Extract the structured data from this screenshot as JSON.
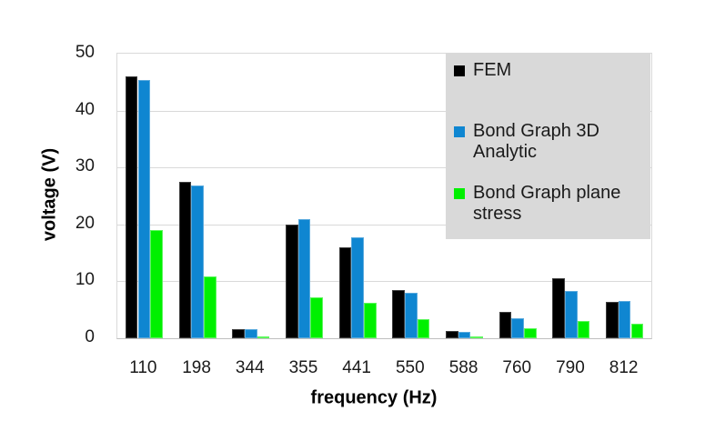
{
  "chart_data": {
    "type": "bar",
    "title": "",
    "xlabel": "frequency (Hz)",
    "ylabel": "voltage (V)",
    "categories": [
      "110",
      "198",
      "344",
      "355",
      "441",
      "550",
      "588",
      "760",
      "790",
      "812"
    ],
    "series": [
      {
        "name": "FEM",
        "color": "#000000",
        "border_color": "#3f3f3f",
        "values": [
          46,
          27.4,
          1.6,
          20,
          16,
          8.5,
          1.3,
          4.7,
          10.6,
          6.4
        ]
      },
      {
        "name": "Bond Graph 3D Analytic",
        "color": "#0f86d1",
        "border_color": "#58a9dd",
        "values": [
          45.3,
          26.9,
          1.6,
          21,
          17.8,
          8,
          1.2,
          3.5,
          8.3,
          6.6
        ]
      },
      {
        "name": "Bond Graph plane stress",
        "color": "#00f000",
        "border_color": "#5cf65c",
        "values": [
          19,
          10.9,
          0.4,
          7.2,
          6.2,
          3.4,
          0.3,
          1.7,
          3,
          2.6
        ]
      }
    ],
    "ylim": [
      0,
      50
    ],
    "yticks": [
      0,
      10,
      20,
      30,
      40,
      50
    ],
    "grid": true,
    "legend_position": "top-right",
    "legend_background": "#d9d9d9"
  },
  "colors": {
    "gridline": "#d9d9d9",
    "axis_line": "#bfbfbf",
    "tick_text": "#1a1a1a",
    "title_text": "#000000",
    "background": "#ffffff"
  }
}
